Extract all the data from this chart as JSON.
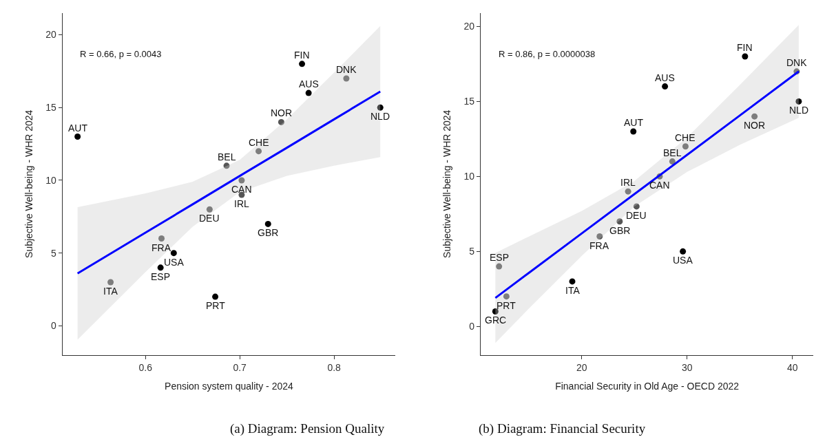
{
  "chart_data": [
    {
      "type": "scatter",
      "xlabel": "Pension system quality - 2024",
      "ylabel": "Subjective Well-being - WHR 2024",
      "xlim": [
        0.512,
        0.865
      ],
      "ylim": [
        -2.0,
        21.5
      ],
      "xticks": [
        0.6,
        0.7,
        0.8
      ],
      "yticks": [
        0,
        5,
        10,
        15,
        20
      ],
      "series": [
        {
          "marker": "circle",
          "x": [
            0.528,
            0.563,
            0.617,
            0.616,
            0.63,
            0.674,
            0.668,
            0.686,
            0.702,
            0.702,
            0.72,
            0.73,
            0.744,
            0.766,
            0.773,
            0.813,
            0.849
          ],
          "values": [
            13,
            3,
            6,
            4,
            5,
            2,
            8,
            11,
            10,
            9,
            12,
            7,
            14,
            18,
            16,
            17,
            15
          ],
          "colors": [
            "#000000",
            "#555555",
            "#555555",
            "#000000",
            "#000000",
            "#000000",
            "#555555",
            "#555555",
            "#555555",
            "#555555",
            "#555555",
            "#000000",
            "#555555",
            "#000000",
            "#000000",
            "#555555",
            "#000000"
          ]
        },
        {
          "type": "line",
          "color": "#0000ff",
          "x": [
            0.528,
            0.6,
            0.65,
            0.7,
            0.75,
            0.8,
            0.849
          ],
          "values": [
            3.6,
            6.4,
            8.35,
            10.3,
            12.24,
            14.19,
            16.1
          ],
          "lower": [
            -0.95,
            3.7,
            6.8,
            9.2,
            10.3,
            11.0,
            11.6
          ],
          "upper": [
            8.15,
            9.1,
            9.9,
            11.4,
            14.2,
            17.4,
            20.6
          ]
        }
      ],
      "annotations": [
        "R = 0.66, p = 0.0043",
        "(a) Diagram: Pension Quality",
        {
          "text": "AUT",
          "x": 0.528,
          "y": 13
        },
        {
          "text": "ITA",
          "x": 0.563,
          "y": 3
        },
        {
          "text": "FRA",
          "x": 0.617,
          "y": 6
        },
        {
          "text": "ESP",
          "x": 0.616,
          "y": 4
        },
        {
          "text": "USA",
          "x": 0.63,
          "y": 5
        },
        {
          "text": "PRT",
          "x": 0.674,
          "y": 2
        },
        {
          "text": "DEU",
          "x": 0.668,
          "y": 8
        },
        {
          "text": "BEL",
          "x": 0.686,
          "y": 11
        },
        {
          "text": "CAN",
          "x": 0.702,
          "y": 10
        },
        {
          "text": "IRL",
          "x": 0.702,
          "y": 9
        },
        {
          "text": "CHE",
          "x": 0.72,
          "y": 12
        },
        {
          "text": "GBR",
          "x": 0.73,
          "y": 7
        },
        {
          "text": "NOR",
          "x": 0.744,
          "y": 14
        },
        {
          "text": "FIN",
          "x": 0.766,
          "y": 18
        },
        {
          "text": "AUS",
          "x": 0.773,
          "y": 16
        },
        {
          "text": "DNK",
          "x": 0.813,
          "y": 17
        },
        {
          "text": "NLD",
          "x": 0.849,
          "y": 15
        }
      ]
    },
    {
      "type": "scatter",
      "xlabel": "Financial Security in Old Age - OECD 2022",
      "ylabel": "Subjective Well-being - WHR 2024",
      "xlim": [
        10.4,
        42.0
      ],
      "ylim": [
        -1.9,
        20.9
      ],
      "xticks": [
        20,
        30,
        40
      ],
      "yticks": [
        0,
        5,
        10,
        15,
        20
      ],
      "series": [
        {
          "marker": "circle",
          "x": [
            35.5,
            40.4,
            27.9,
            40.6,
            36.4,
            24.9,
            29.85,
            28.6,
            27.4,
            24.4,
            25.2,
            23.6,
            21.7,
            29.6,
            12.15,
            19.1,
            12.85,
            11.8
          ],
          "values": [
            18,
            17,
            16,
            15,
            14,
            13,
            12,
            11,
            10,
            9,
            8,
            7,
            6,
            5,
            4,
            3,
            2,
            1
          ],
          "colors": [
            "#000000",
            "#555555",
            "#000000",
            "#000000",
            "#555555",
            "#000000",
            "#555555",
            "#555555",
            "#555555",
            "#555555",
            "#555555",
            "#555555",
            "#555555",
            "#000000",
            "#555555",
            "#000000",
            "#555555",
            "#000000"
          ]
        },
        {
          "type": "line",
          "color": "#0000ff",
          "x": [
            11.8,
            15,
            20,
            25,
            30,
            35,
            40.6
          ],
          "values": [
            1.9,
            3.58,
            6.2,
            8.82,
            11.44,
            14.06,
            17.0
          ],
          "lower": [
            -1.1,
            1.2,
            4.7,
            8.0,
            10.3,
            12.1,
            13.9
          ],
          "upper": [
            4.9,
            6.0,
            7.7,
            9.7,
            12.6,
            16.1,
            20.1
          ]
        }
      ],
      "annotations": [
        "R = 0.86, p = 0.0000038",
        "(b) Diagram: Financial Security",
        {
          "text": "FIN",
          "x": 35.5,
          "y": 18
        },
        {
          "text": "DNK",
          "x": 40.4,
          "y": 17
        },
        {
          "text": "AUS",
          "x": 27.9,
          "y": 16
        },
        {
          "text": "NLD",
          "x": 40.6,
          "y": 15
        },
        {
          "text": "NOR",
          "x": 36.4,
          "y": 14
        },
        {
          "text": "AUT",
          "x": 24.9,
          "y": 13
        },
        {
          "text": "CHE",
          "x": 29.85,
          "y": 12
        },
        {
          "text": "BEL",
          "x": 28.6,
          "y": 11
        },
        {
          "text": "CAN",
          "x": 27.4,
          "y": 10
        },
        {
          "text": "IRL",
          "x": 24.4,
          "y": 9
        },
        {
          "text": "DEU",
          "x": 25.2,
          "y": 8
        },
        {
          "text": "GBR",
          "x": 23.6,
          "y": 7
        },
        {
          "text": "FRA",
          "x": 21.7,
          "y": 6
        },
        {
          "text": "USA",
          "x": 29.6,
          "y": 5
        },
        {
          "text": "ESP",
          "x": 12.15,
          "y": 4
        },
        {
          "text": "ITA",
          "x": 19.1,
          "y": 3
        },
        {
          "text": "PRT",
          "x": 12.85,
          "y": 2
        },
        {
          "text": "GRC",
          "x": 11.8,
          "y": 1
        }
      ]
    }
  ]
}
